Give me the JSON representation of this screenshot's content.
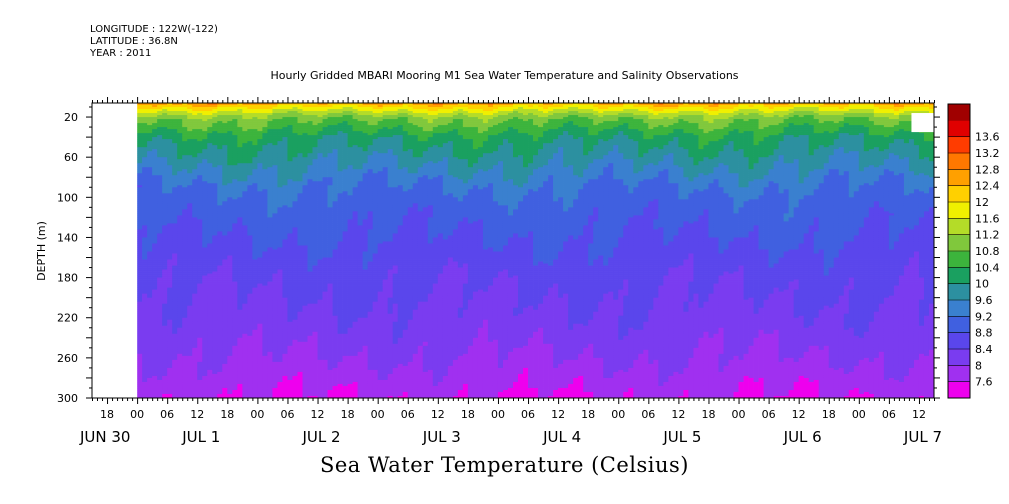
{
  "header": {
    "longitude": "LONGITUDE : 122W(-122)",
    "latitude": "LATITUDE : 36.8N",
    "year": "YEAR : 2011"
  },
  "chart_data": {
    "type": "heatmap",
    "title": "Hourly Gridded MBARI Mooring M1 Sea Water Temperature and Salinity Observations",
    "xlabel": "Sea Water Temperature (Celsius)",
    "ylabel": "DEPTH (m)",
    "x_range_hours": [
      -9,
      159
    ],
    "x_data_start_hours": 0,
    "x_hour_ticks": [
      "18",
      "00",
      "06",
      "12",
      "18",
      "00",
      "06",
      "12",
      "18",
      "00",
      "06",
      "12",
      "18",
      "00",
      "06",
      "12",
      "18",
      "00",
      "06",
      "12",
      "18",
      "00",
      "06",
      "12",
      "18",
      "00",
      "06",
      "12",
      "18",
      "00",
      "06",
      "12"
    ],
    "x_date_labels": [
      "JUN 30",
      "JUL 1",
      "JUL 2",
      "JUL 3",
      "JUL 4",
      "JUL 5",
      "JUL 6",
      "JUL 7"
    ],
    "ylim": [
      300,
      6
    ],
    "y_ticks": [
      20,
      60,
      100,
      140,
      180,
      220,
      260,
      300
    ],
    "colorbar_levels": [
      "7.6",
      "8",
      "8.4",
      "8.8",
      "9.2",
      "9.6",
      "10",
      "10.4",
      "10.8",
      "11.2",
      "11.6",
      "12",
      "12.4",
      "12.8",
      "13.2",
      "13.6"
    ],
    "colorbar_colors": [
      "#ee00ee",
      "#a030f0",
      "#7a3cf0",
      "#5a46ec",
      "#4060e0",
      "#3a80cf",
      "#2c90a0",
      "#1aa060",
      "#3cb43c",
      "#80c83c",
      "#b4dc28",
      "#f0f000",
      "#ffd000",
      "#ffa000",
      "#ff7800",
      "#ff3c00",
      "#e00000",
      "#a00000"
    ],
    "temperature_profile": {
      "depth_m": [
        6,
        10,
        14,
        18,
        22,
        30,
        40,
        55,
        70,
        90,
        110,
        140,
        180,
        220,
        260,
        280,
        300
      ],
      "temp_c": [
        12.6,
        12.0,
        11.6,
        11.2,
        10.9,
        10.6,
        10.2,
        9.9,
        9.6,
        9.2,
        9.0,
        8.8,
        8.5,
        8.3,
        8.0,
        7.8,
        7.6
      ]
    },
    "missing_data": [
      {
        "hours": [
          -9,
          0
        ],
        "depth_m": [
          6,
          300
        ]
      },
      {
        "hours": [
          154.5,
          159
        ],
        "depth_m": [
          16,
          35
        ]
      }
    ]
  }
}
